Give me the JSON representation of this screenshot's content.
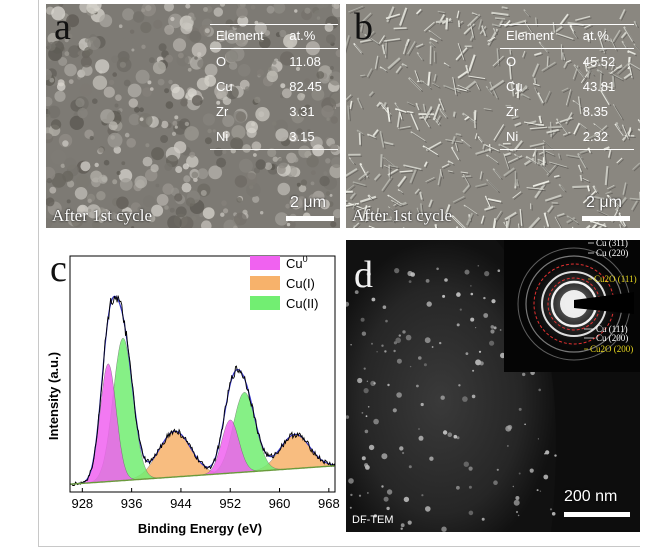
{
  "panel_a": {
    "letter": "a",
    "caption": "After 1st cycle",
    "scale": "2 μm",
    "table": {
      "headers": [
        "Element",
        "at.%"
      ],
      "rows": [
        [
          "O",
          "11.08"
        ],
        [
          "Cu",
          "82.45"
        ],
        [
          "Zr",
          "3.31"
        ],
        [
          "Ni",
          "3.15"
        ]
      ]
    }
  },
  "panel_b": {
    "letter": "b",
    "caption": "After 1st cycle",
    "scale": "2 μm",
    "table": {
      "headers": [
        "Element",
        "at.%"
      ],
      "rows": [
        [
          "O",
          "45.52"
        ],
        [
          "Cu",
          "43.81"
        ],
        [
          "Zr",
          "8.35"
        ],
        [
          "Ni",
          "2.32"
        ]
      ]
    }
  },
  "panel_c": {
    "letter": "c",
    "legend": [
      {
        "label": "Cu",
        "sup": "0",
        "color": "#f062f0"
      },
      {
        "label": "Cu(I)",
        "sup": "",
        "color": "#f7b26b"
      },
      {
        "label": "Cu(II)",
        "sup": "",
        "color": "#72ee72"
      }
    ],
    "chart_data": {
      "type": "area",
      "xlabel": "Binding Energy (eV)",
      "ylabel": "Intensity (a.u.)",
      "xlim": [
        926,
        969
      ],
      "xticks": [
        928,
        936,
        944,
        952,
        960,
        968
      ],
      "series": [
        {
          "name": "Cu",
          "peaks": [
            {
              "center": 932.2,
              "height": 0.62,
              "width": 1.3
            },
            {
              "center": 952.0,
              "height": 0.28,
              "width": 1.4
            }
          ]
        },
        {
          "name": "Cu(I)",
          "peaks": [
            {
              "center": 943.0,
              "height": 0.24,
              "width": 2.6
            },
            {
              "center": 962.5,
              "height": 0.18,
              "width": 2.4
            }
          ]
        },
        {
          "name": "Cu(II)",
          "peaks": [
            {
              "center": 934.6,
              "height": 0.75,
              "width": 1.6
            },
            {
              "center": 954.3,
              "height": 0.42,
              "width": 1.8
            }
          ]
        }
      ],
      "grid": false
    }
  },
  "panel_d": {
    "letter": "d",
    "label": "DF-TEM",
    "scale": "200 nm",
    "saed": [
      {
        "text": "Cu (311)",
        "color": "#ffffff"
      },
      {
        "text": "Cu (220)",
        "color": "#ffffff"
      },
      {
        "text": "Cu2O (111)",
        "color": "#e8d820"
      },
      {
        "text": "Cu (111)",
        "color": "#ffffff"
      },
      {
        "text": "Cu (200)",
        "color": "#ffffff"
      },
      {
        "text": "Cu2O (200)",
        "color": "#e8d820"
      }
    ]
  }
}
